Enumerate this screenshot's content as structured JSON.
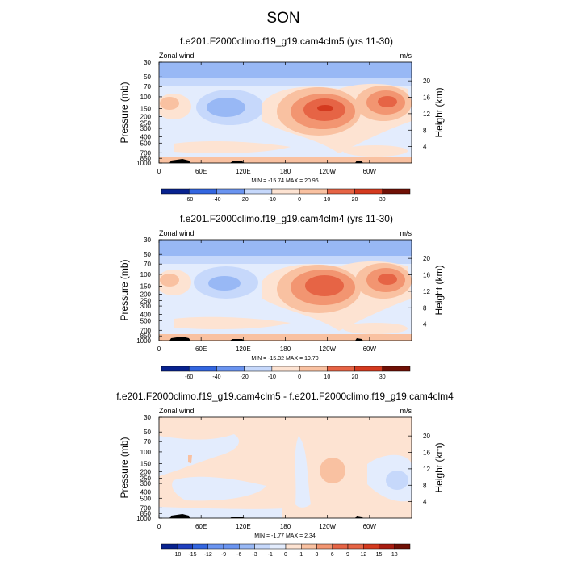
{
  "main_title": "SON",
  "colors": {
    "scale_a": [
      "#08228f",
      "#1f3fbf",
      "#3366e0",
      "#6a94f0",
      "#98b8f5",
      "#c6d8fb",
      "#e3ecfd",
      "#fde3d2",
      "#f9c1a1",
      "#f29571",
      "#e66445",
      "#d43a1f",
      "#a81c10",
      "#701006"
    ],
    "scale_b": [
      "#08228f",
      "#1f3fbf",
      "#3366e0",
      "#6a94f0",
      "#98b8f5",
      "#c6d8fb",
      "#e3ecfd",
      "#fde3d2",
      "#f9c1a1",
      "#f29571",
      "#e66445",
      "#d43a1f",
      "#a81c10",
      "#701006"
    ],
    "terrain": "#000000"
  },
  "chart_data": [
    {
      "type": "heatmap",
      "title": "f.e201.F2000climo.f19_g19.cam4clm5 (yrs 11-30)",
      "left_label": "Zonal wind",
      "right_label": "m/s",
      "ylabel": "Pressure (mb)",
      "ylabel_right": "Height (km)",
      "x_ticks": [
        "0",
        "60E",
        "120E",
        "180",
        "120W",
        "60W"
      ],
      "y_ticks": [
        "30",
        "50",
        "70",
        "100",
        "150",
        "200",
        "250",
        "300",
        "400",
        "500",
        "700",
        "850",
        "1000"
      ],
      "y_right_ticks": [
        "20",
        "16",
        "12",
        "8",
        "4"
      ],
      "stats": "MIN = -15.74  MAX =  20.96",
      "colorbar_labels": [
        "-60",
        "-40",
        "-20",
        "-10",
        "0",
        "10",
        "20",
        "30"
      ],
      "scale": "scale_a"
    },
    {
      "type": "heatmap",
      "title": "f.e201.F2000climo.f19_g19.cam4clm4 (yrs 11-30)",
      "left_label": "Zonal wind",
      "right_label": "m/s",
      "ylabel": "Pressure (mb)",
      "ylabel_right": "Height (km)",
      "x_ticks": [
        "0",
        "60E",
        "120E",
        "180",
        "120W",
        "60W"
      ],
      "y_ticks": [
        "30",
        "50",
        "70",
        "100",
        "150",
        "200",
        "250",
        "300",
        "400",
        "500",
        "700",
        "850",
        "1000"
      ],
      "y_right_ticks": [
        "20",
        "16",
        "12",
        "8",
        "4"
      ],
      "stats": "MIN = -15.32  MAX =  19.70",
      "colorbar_labels": [
        "-60",
        "-40",
        "-20",
        "-10",
        "0",
        "10",
        "20",
        "30"
      ],
      "scale": "scale_a"
    },
    {
      "type": "heatmap",
      "title": "f.e201.F2000climo.f19_g19.cam4clm5 - f.e201.F2000climo.f19_g19.cam4clm4",
      "left_label": "Zonal wind",
      "right_label": "m/s",
      "ylabel": "Pressure (mb)",
      "ylabel_right": "Height (km)",
      "x_ticks": [
        "0",
        "60E",
        "120E",
        "180",
        "120W",
        "60W"
      ],
      "y_ticks": [
        "30",
        "50",
        "70",
        "100",
        "150",
        "200",
        "250",
        "300",
        "400",
        "500",
        "700",
        "850",
        "1000"
      ],
      "y_right_ticks": [
        "20",
        "16",
        "12",
        "8",
        "4"
      ],
      "stats": "MIN =  -1.77  MAX =   2.34",
      "colorbar_labels": [
        "-18",
        "-15",
        "-12",
        "-9",
        "-6",
        "-3",
        "-1",
        "0",
        "1",
        "3",
        "6",
        "9",
        "12",
        "15",
        "18"
      ],
      "scale": "scale_b"
    }
  ]
}
